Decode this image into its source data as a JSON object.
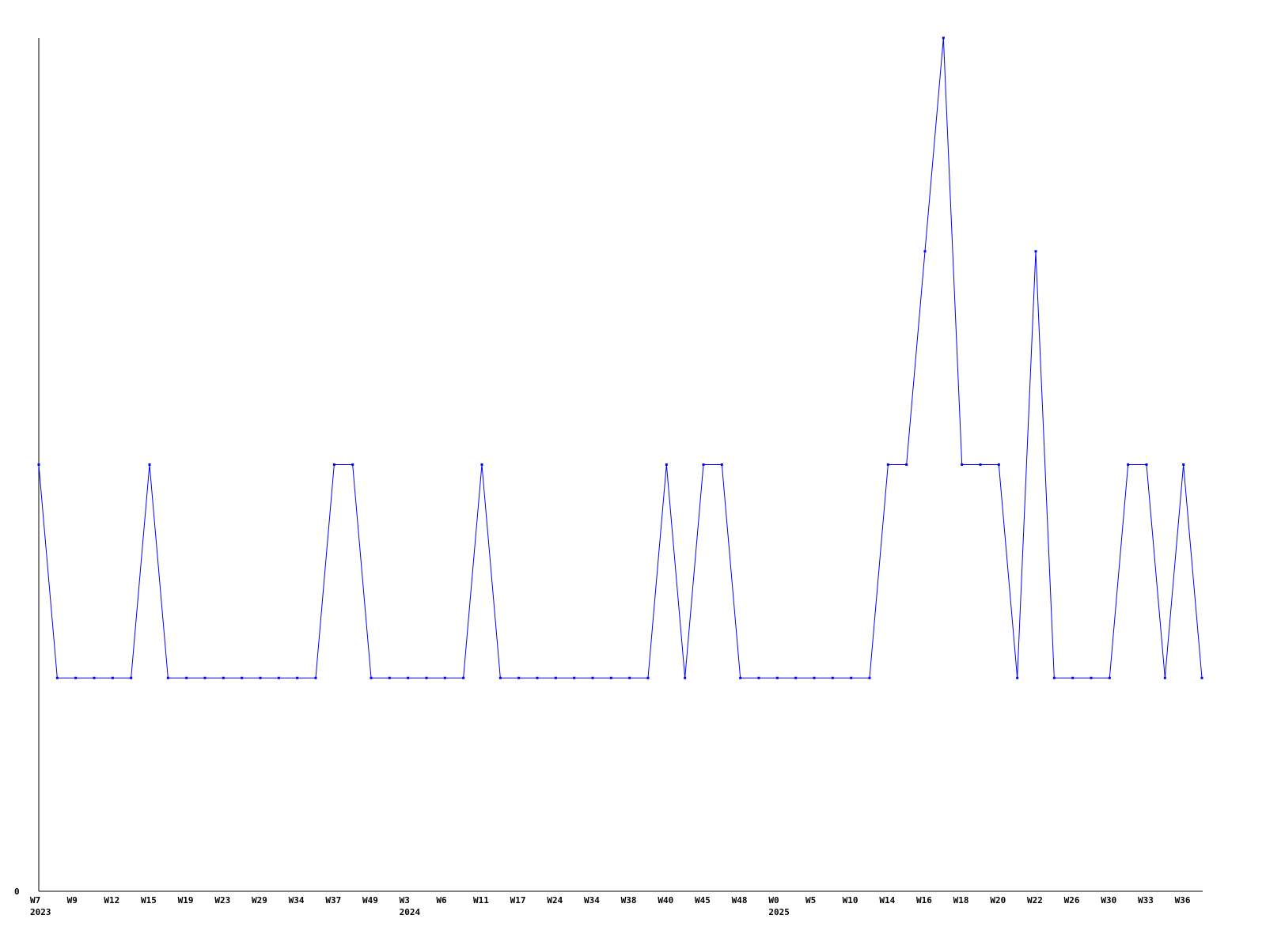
{
  "chart_data": {
    "type": "line",
    "title": "",
    "xlabel": "",
    "ylabel": "",
    "ylim": [
      0,
      4
    ],
    "y_tick_labels": [
      "0"
    ],
    "grid": false,
    "legend": "none",
    "line_color": "#0000ff",
    "x_tick_labels": [
      "W7",
      "W9",
      "W12",
      "W15",
      "W19",
      "W23",
      "W29",
      "W34",
      "W37",
      "W49",
      "W3",
      "W6",
      "W11",
      "W17",
      "W24",
      "W34",
      "W38",
      "W40",
      "W45",
      "W48",
      "W0",
      "W5",
      "W10",
      "W14",
      "W16",
      "W18",
      "W20",
      "W22",
      "W26",
      "W30",
      "W33",
      "W36"
    ],
    "year_labels": [
      {
        "label": "2023",
        "tick": "W7"
      },
      {
        "label": "2024",
        "tick": "W3"
      },
      {
        "label": "2025",
        "tick": "W0"
      }
    ],
    "series": [
      {
        "values": [
          2,
          1,
          1,
          1,
          1,
          1,
          2,
          1,
          1,
          1,
          1,
          1,
          1,
          1,
          1,
          1,
          2,
          2,
          1,
          1,
          1,
          1,
          1,
          1,
          2,
          1,
          1,
          1,
          1,
          1,
          1,
          1,
          1,
          1,
          2,
          1,
          2,
          2,
          1,
          1,
          1,
          1,
          1,
          1,
          1,
          1,
          2,
          2,
          3,
          4,
          2,
          2,
          2,
          1,
          3,
          1,
          1,
          1,
          1,
          2,
          2,
          1,
          2,
          1
        ]
      }
    ]
  }
}
